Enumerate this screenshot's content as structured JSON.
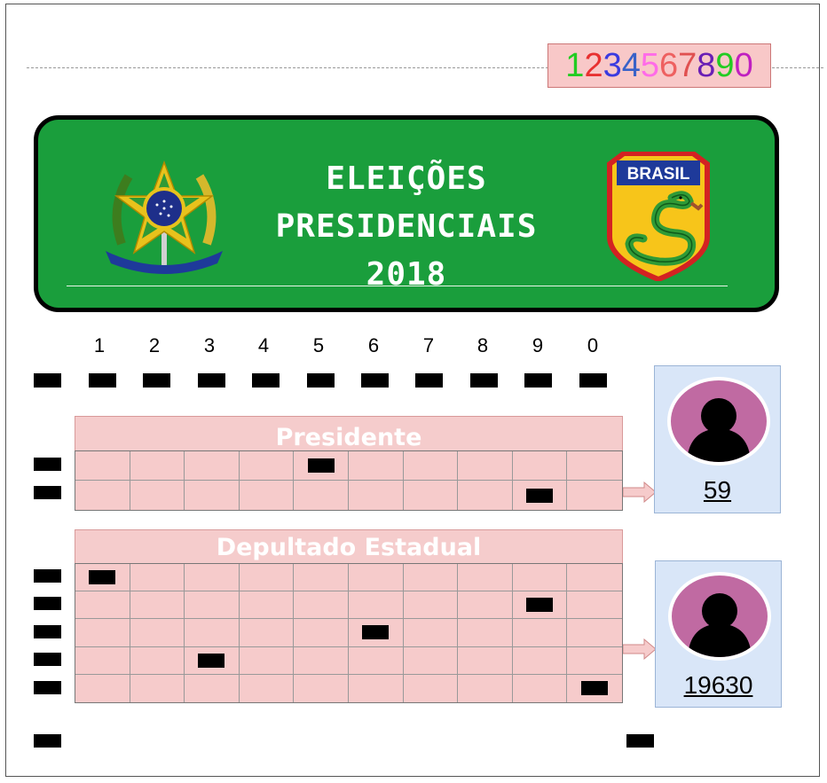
{
  "header": {
    "digit_strip": [
      {
        "digit": "1",
        "color": "#22cc22"
      },
      {
        "digit": "2",
        "color": "#e83030"
      },
      {
        "digit": "3",
        "color": "#3a3ae0"
      },
      {
        "digit": "4",
        "color": "#3a62c8"
      },
      {
        "digit": "5",
        "color": "#ff6be8"
      },
      {
        "digit": "6",
        "color": "#ee6060"
      },
      {
        "digit": "7",
        "color": "#e05050"
      },
      {
        "digit": "8",
        "color": "#6a1fb5"
      },
      {
        "digit": "9",
        "color": "#22cc22"
      },
      {
        "digit": "0",
        "color": "#c020c0"
      }
    ]
  },
  "banner": {
    "title_line1": "ELEIÇÕES",
    "title_line2": "PRESIDENCIAIS",
    "title_line3": "2018",
    "background_color": "#1a9e3c",
    "left_emblem": "brazil-coat-of-arms-icon",
    "right_emblem": "cobra-fumando-shield-icon",
    "shield_label": "BRASIL"
  },
  "column_numbers": [
    "1",
    "2",
    "3",
    "4",
    "5",
    "6",
    "7",
    "8",
    "9",
    "0"
  ],
  "sections": {
    "presidente": {
      "label": "Presidente",
      "rows": 2,
      "columns": 10,
      "marked_digits": [
        "5",
        "9"
      ],
      "candidate_number": "59",
      "avatar_icon": "person-silhouette-icon"
    },
    "deputado": {
      "label": "Depultado Estadual",
      "rows": 5,
      "columns": 10,
      "marked_digits": [
        "1",
        "9",
        "6",
        "3",
        "0"
      ],
      "candidate_number": "19630",
      "avatar_icon": "person-silhouette-icon"
    }
  }
}
